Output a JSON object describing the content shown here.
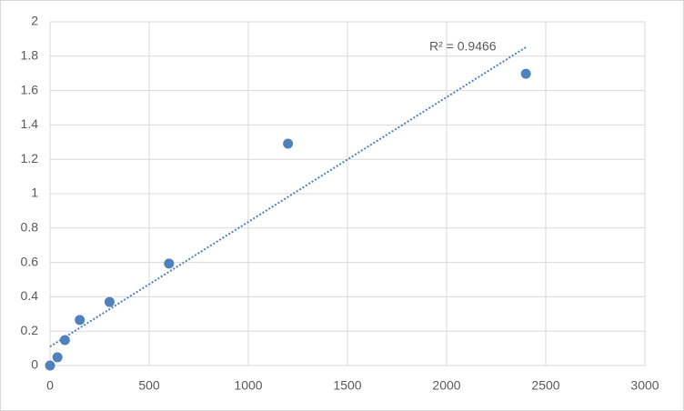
{
  "chart_data": {
    "type": "scatter",
    "x": [
      0,
      37.5,
      75,
      150,
      300,
      600,
      1200,
      2400
    ],
    "series": [
      {
        "color": "#4f81bd",
        "values": [
          0,
          0.048,
          0.148,
          0.265,
          0.37,
          0.593,
          1.291,
          1.698
        ]
      }
    ],
    "trendline": {
      "x": [
        0,
        2400
      ],
      "values": [
        0.11,
        1.852
      ],
      "label": "R² = 0.9466",
      "color": "#4f81bd"
    },
    "xlim": [
      0,
      3000
    ],
    "xticks": [
      0,
      500,
      1000,
      1500,
      2000,
      2500,
      3000
    ],
    "ylim": [
      0,
      2
    ],
    "yticks": [
      0,
      0.2,
      0.4,
      0.6,
      0.8,
      1,
      1.2,
      1.4,
      1.6,
      1.8,
      2
    ],
    "grid": true
  }
}
